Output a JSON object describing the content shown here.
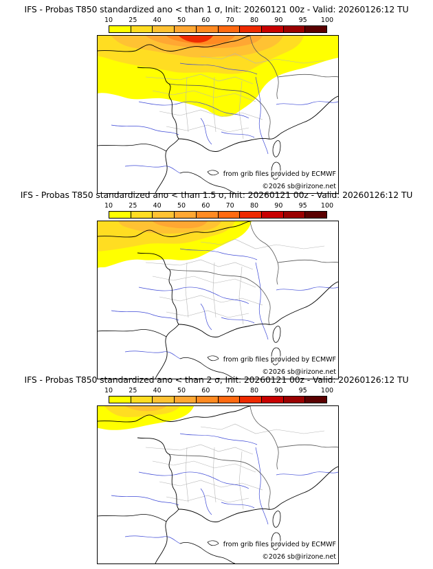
{
  "colorbar": {
    "ticks": [
      "10",
      "25",
      "40",
      "50",
      "60",
      "70",
      "80",
      "90",
      "95",
      "100"
    ],
    "colors": [
      "#ffff00",
      "#ffdd22",
      "#ffc233",
      "#ffa733",
      "#ff8a22",
      "#ff6a11",
      "#ee2a00",
      "#c80000",
      "#9a0000",
      "#5a0000"
    ]
  },
  "panels": [
    {
      "title": "IFS - Probas T850  standardized ano < than 1 σ, Init: 20260121 00z - Valid: 20260126:12 TU",
      "credit_source": "from grib files provided by ECMWF",
      "credit_copyright": "©2026 sb@irizone.net",
      "field_extent": "large"
    },
    {
      "title": "IFS - Probas T850  standardized ano < than 1.5 σ, Init: 20260121 00z - Valid: 20260126:12 TU",
      "credit_source": "from grib files provided by ECMWF",
      "credit_copyright": "©2026 sb@irizone.net",
      "field_extent": "medium"
    },
    {
      "title": "IFS - Probas T850  standardized ano < than 2 σ, Init: 20260121 00z - Valid: 20260126:12 TU",
      "credit_source": "from grib files provided by ECMWF",
      "credit_copyright": "©2026 sb@irizone.net",
      "field_extent": "small"
    }
  ]
}
